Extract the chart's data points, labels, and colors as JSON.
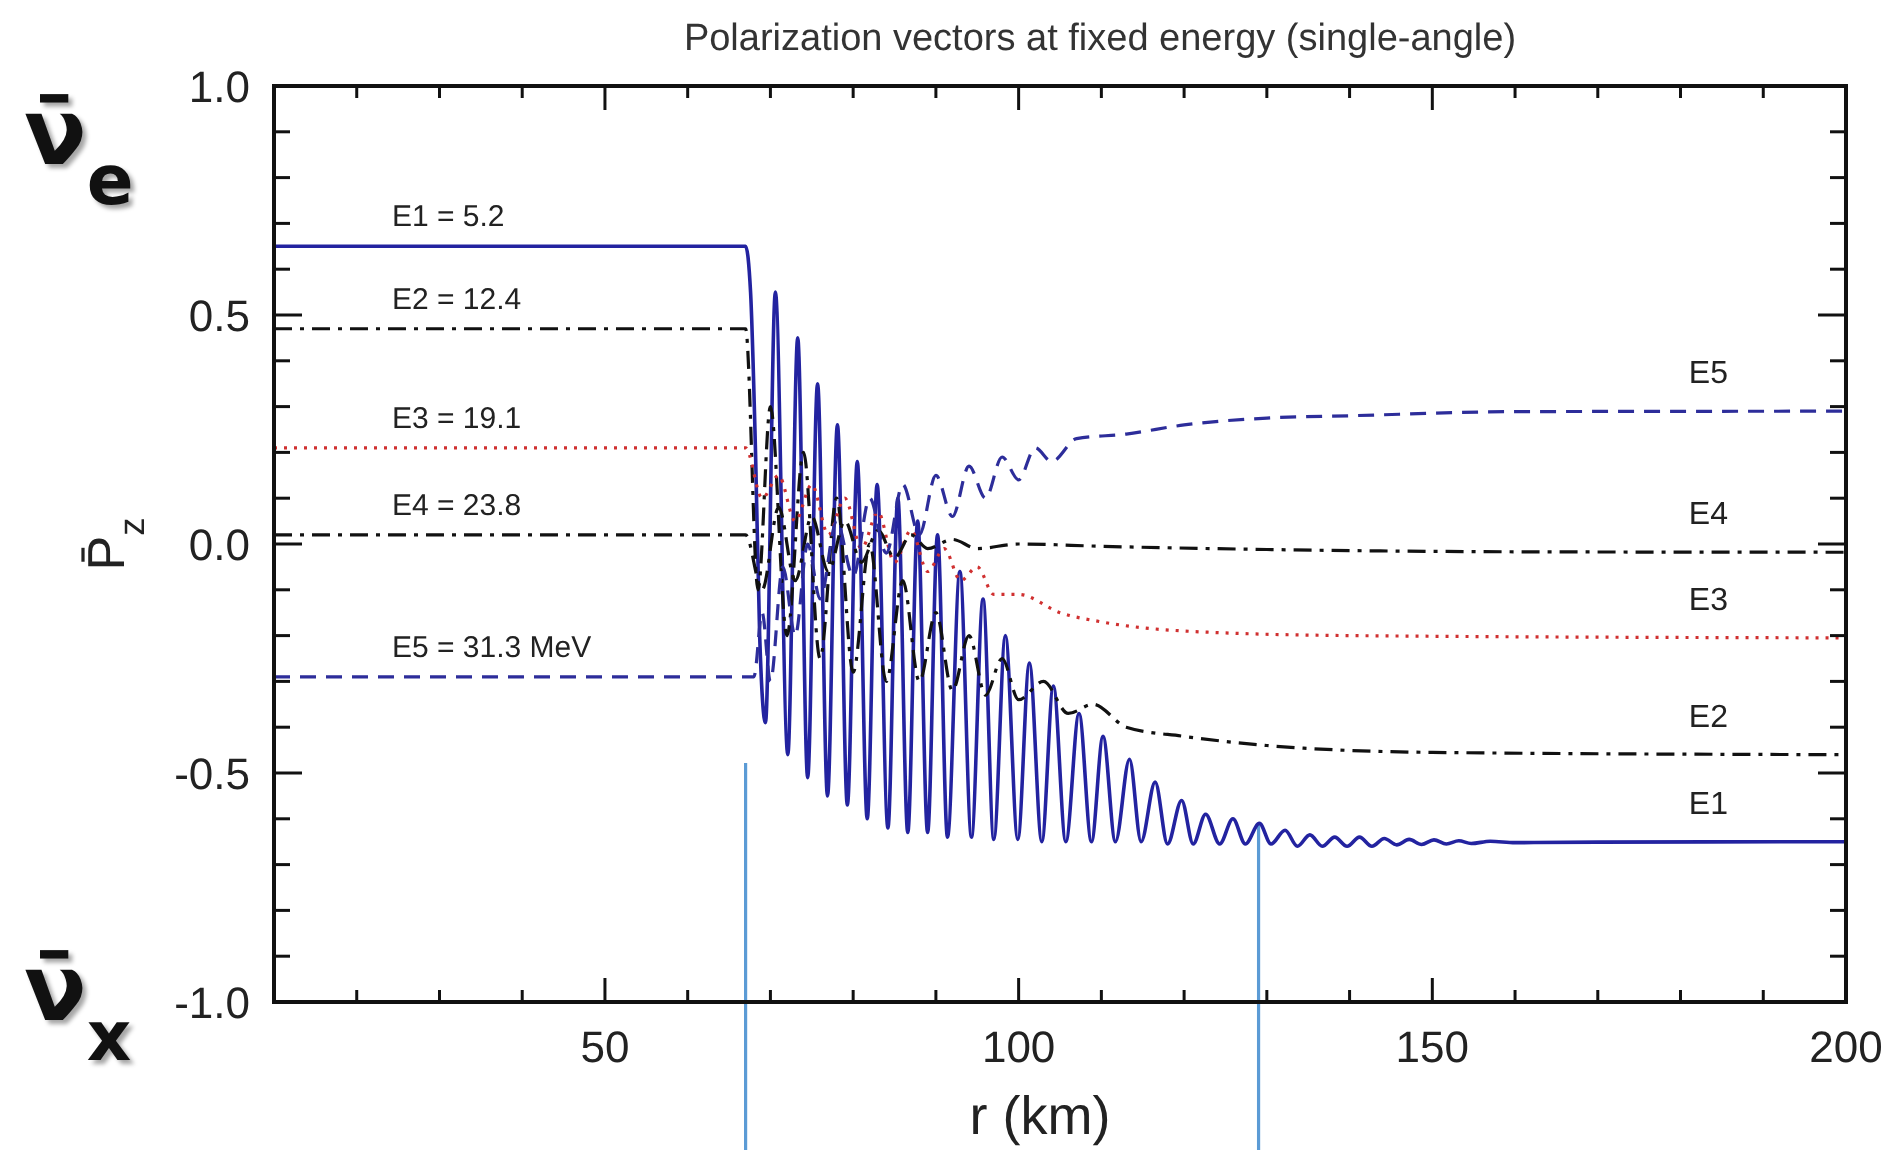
{
  "chart_data": {
    "type": "line",
    "title": "Polarization vectors at fixed energy (single-angle)",
    "xlabel": "r (km)",
    "ylabel": "P̄$_{z}$",
    "xlim": [
      10,
      200
    ],
    "ylim": [
      -1,
      1
    ],
    "xticks": [
      {
        "value": 20,
        "label": null
      },
      {
        "value": 30,
        "label": null
      },
      {
        "value": 40,
        "label": null
      },
      50,
      {
        "value": 60,
        "label": null
      },
      {
        "value": 70,
        "label": null
      },
      {
        "value": 80,
        "label": null
      },
      {
        "value": 90,
        "label": null
      },
      100,
      {
        "value": 110,
        "label": null
      },
      {
        "value": 120,
        "label": null
      },
      {
        "value": 130,
        "label": null
      },
      {
        "value": 140,
        "label": null
      },
      150,
      {
        "value": 160,
        "label": null
      },
      {
        "value": 170,
        "label": null
      },
      {
        "value": 180,
        "label": null
      },
      {
        "value": 190,
        "label": null
      },
      200
    ],
    "yticks": [
      {
        "value": -1,
        "label": "-1.0"
      },
      {
        "value": -0.9,
        "label": null
      },
      {
        "value": -0.8,
        "label": null
      },
      {
        "value": -0.7,
        "label": null
      },
      {
        "value": -0.6,
        "label": null
      },
      {
        "value": -0.5,
        "label": "-0.5"
      },
      {
        "value": -0.4,
        "label": null
      },
      {
        "value": -0.3,
        "label": null
      },
      {
        "value": -0.2,
        "label": null
      },
      {
        "value": -0.1,
        "label": null
      },
      {
        "value": 0,
        "label": "0.0"
      },
      {
        "value": 0.1,
        "label": null
      },
      {
        "value": 0.2,
        "label": null
      },
      {
        "value": 0.3,
        "label": null
      },
      {
        "value": 0.4,
        "label": null
      },
      {
        "value": 0.5,
        "label": "0.5"
      },
      {
        "value": 0.6,
        "label": null
      },
      {
        "value": 0.7,
        "label": null
      },
      {
        "value": 0.8,
        "label": null
      },
      {
        "value": 0.9,
        "label": null
      },
      {
        "value": 1,
        "label": "1.0"
      }
    ],
    "grid": false,
    "marker": "none",
    "series": [
      {
        "name": "E1",
        "color": "#2323a0",
        "line_style": "solid",
        "x": [
          10,
          67,
          67.6,
          68.2,
          68.7,
          69.4,
          70.6,
          72.1,
          73.3,
          74.5,
          75.7,
          76.9,
          78.1,
          79.3,
          80.5,
          81.7,
          82.9,
          84.2,
          85.4,
          86.6,
          87.8,
          89.0,
          90.2,
          91.4,
          92.9,
          94.3,
          95.7,
          97.0,
          98.4,
          99.9,
          101.3,
          102.8,
          104.2,
          105.7,
          107.3,
          108.8,
          110.2,
          111.7,
          113.4,
          114.8,
          116.5,
          118.0,
          119.7,
          121.1,
          122.6,
          124.3,
          125.9,
          127.4,
          129.1,
          130.5,
          132.2,
          133.7,
          135.2,
          136.7,
          138.2,
          139.7,
          141.2,
          142.7,
          144.2,
          145.7,
          147.2,
          148.7,
          150.2,
          151.7,
          153.2,
          154.7,
          157,
          160,
          170,
          200
        ],
        "values": [
          0.65,
          0.65,
          0.55,
          0.2,
          -0.2,
          -0.39,
          0.55,
          -0.46,
          0.45,
          -0.51,
          0.35,
          -0.55,
          0.26,
          -0.57,
          0.18,
          -0.6,
          0.13,
          -0.62,
          0.1,
          -0.63,
          0.05,
          -0.63,
          0.02,
          -0.64,
          -0.06,
          -0.64,
          -0.12,
          -0.645,
          -0.2,
          -0.645,
          -0.26,
          -0.65,
          -0.31,
          -0.65,
          -0.37,
          -0.65,
          -0.42,
          -0.65,
          -0.47,
          -0.65,
          -0.52,
          -0.655,
          -0.56,
          -0.655,
          -0.59,
          -0.655,
          -0.6,
          -0.655,
          -0.61,
          -0.655,
          -0.625,
          -0.66,
          -0.635,
          -0.66,
          -0.64,
          -0.66,
          -0.64,
          -0.66,
          -0.643,
          -0.657,
          -0.645,
          -0.656,
          -0.646,
          -0.655,
          -0.648,
          -0.654,
          -0.649,
          -0.652,
          -0.651,
          -0.65
        ]
      },
      {
        "name": "E2",
        "color": "#111111",
        "line_style": "dashdot",
        "x": [
          10,
          67,
          68.5,
          70,
          72,
          74,
          76,
          78,
          80,
          82,
          84,
          86,
          88,
          90,
          92,
          94,
          96,
          98,
          100,
          103,
          106,
          109,
          113,
          120,
          130,
          150,
          200
        ],
        "values": [
          0.47,
          0.47,
          -0.1,
          0.3,
          -0.2,
          0.2,
          -0.25,
          0.1,
          -0.28,
          0.0,
          -0.3,
          -0.08,
          -0.3,
          -0.15,
          -0.32,
          -0.2,
          -0.33,
          -0.25,
          -0.34,
          -0.3,
          -0.37,
          -0.35,
          -0.4,
          -0.42,
          -0.44,
          -0.455,
          -0.46
        ]
      },
      {
        "name": "E3",
        "color": "#d03030",
        "line_style": "dotted",
        "x": [
          10,
          67,
          69,
          71,
          73,
          75,
          77,
          79,
          81,
          83,
          85,
          87,
          89,
          91,
          93,
          95,
          97,
          100,
          105,
          110,
          120,
          140,
          200
        ],
        "values": [
          0.21,
          0.21,
          0.1,
          0.15,
          0.05,
          0.13,
          0.02,
          0.1,
          -0.01,
          0.07,
          -0.04,
          0.03,
          -0.06,
          -0.01,
          -0.08,
          -0.05,
          -0.11,
          -0.11,
          -0.15,
          -0.17,
          -0.19,
          -0.2,
          -0.205
        ]
      },
      {
        "name": "E4",
        "color": "#111111",
        "line_style": "dashdot",
        "x": [
          10,
          67,
          69,
          71,
          73,
          75,
          77,
          79,
          81,
          83,
          85,
          87,
          89,
          92,
          95,
          100,
          110,
          130,
          160,
          200
        ],
        "values": [
          0.02,
          0.02,
          -0.1,
          0.08,
          -0.08,
          0.06,
          -0.06,
          0.05,
          -0.04,
          0.03,
          -0.03,
          0.02,
          -0.01,
          0.01,
          -0.01,
          0.0,
          -0.005,
          -0.012,
          -0.017,
          -0.018
        ]
      },
      {
        "name": "E5",
        "color": "#2d2d9a",
        "line_style": "dashed",
        "x": [
          10,
          67,
          68,
          69,
          70,
          71.5,
          73,
          74.5,
          76,
          78,
          80,
          82,
          84,
          86,
          88,
          90,
          92,
          94,
          96,
          98,
          100,
          102,
          104,
          107,
          113,
          120,
          130,
          140,
          160,
          200
        ],
        "values": [
          -0.29,
          -0.29,
          -0.29,
          -0.15,
          -0.3,
          -0.05,
          -0.2,
          0.0,
          -0.12,
          0.05,
          -0.07,
          0.1,
          -0.02,
          0.13,
          0.02,
          0.15,
          0.06,
          0.17,
          0.1,
          0.19,
          0.14,
          0.21,
          0.18,
          0.23,
          0.24,
          0.26,
          0.275,
          0.28,
          0.289,
          0.29
        ]
      }
    ],
    "ref_lines": [
      {
        "axis": "x",
        "value": 67,
        "color": "#5b9bd5"
      },
      {
        "axis": "x",
        "value": 129,
        "color": "#5b9bd5"
      }
    ],
    "annotations": [
      "E1 = 5.2",
      "E2 = 12.4",
      "E3 = 19.1",
      "E4 = 23.8",
      "E5 = 31.3 MeV",
      "ν̄$_{e}$",
      "ν̄$_{x}$"
    ]
  }
}
